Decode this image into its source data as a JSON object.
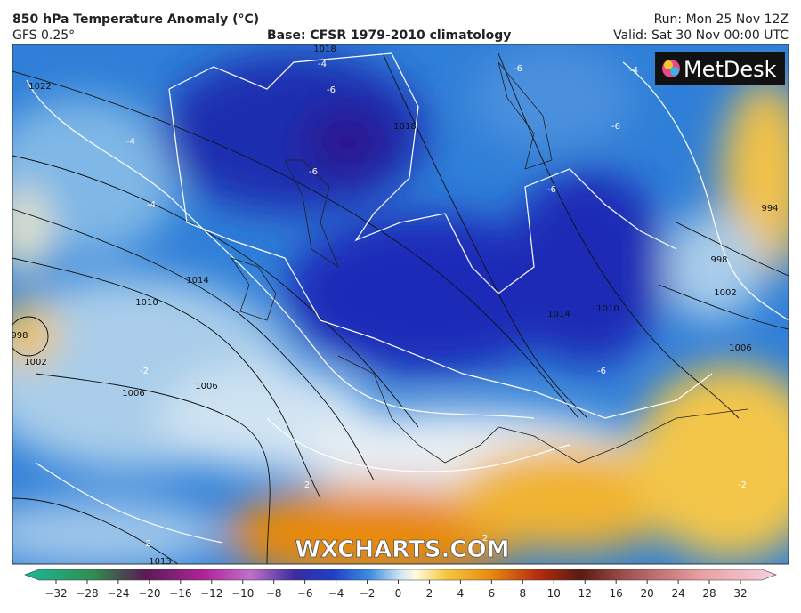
{
  "header": {
    "title": "850 hPa Temperature Anomaly (°C)",
    "model": "GFS 0.25°",
    "base": "Base: CFSR 1979-2010 climatology",
    "run": "Run: Mon 25 Nov 12Z",
    "valid": "Valid: Sat 30 Nov 00:00 UTC"
  },
  "map": {
    "logo": "MetDesk",
    "watermark": "WXCHARTS.COM",
    "isobar_labels": [
      "1022",
      "1018",
      "1018",
      "1014",
      "1010",
      "1002",
      "1006",
      "1006",
      "998",
      "1002",
      "1006",
      "1010",
      "1014",
      "994",
      "1013",
      "998"
    ],
    "anomaly_labels": [
      "-6",
      "-6",
      "-4",
      "-6",
      "-6",
      "-6",
      "-4",
      "-4",
      "-4",
      "-6",
      "-2",
      "2",
      "2",
      "-2",
      "-2"
    ]
  },
  "colorbar": {
    "ticks": [
      "−32",
      "−28",
      "−24",
      "−20",
      "−16",
      "−12",
      "−10",
      "−8",
      "−6",
      "−4",
      "−2",
      "0",
      "2",
      "4",
      "6",
      "8",
      "10",
      "12",
      "16",
      "20",
      "24",
      "28",
      "32"
    ]
  }
}
